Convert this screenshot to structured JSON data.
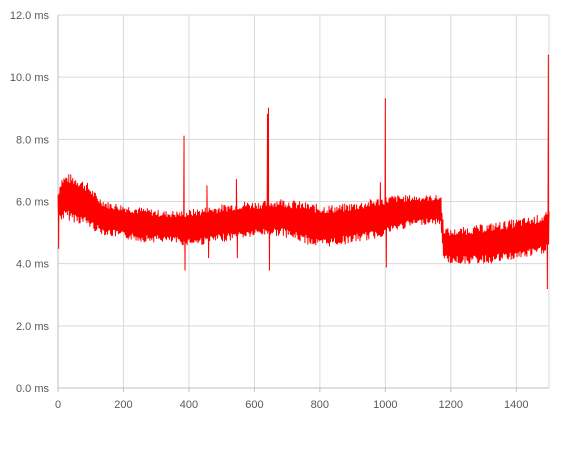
{
  "chart_data": {
    "type": "line",
    "title": "",
    "xlabel": "",
    "ylabel": "",
    "xlim": [
      0,
      1500
    ],
    "ylim": [
      0,
      12
    ],
    "x_ticks": [
      0,
      200,
      400,
      600,
      800,
      1000,
      1200,
      1400
    ],
    "x_tick_labels": [
      "0",
      "200",
      "400",
      "600",
      "800",
      "1000",
      "1200",
      "1400"
    ],
    "y_ticks": [
      0,
      2,
      4,
      6,
      8,
      10,
      12
    ],
    "y_tick_labels": [
      "0.0 ms",
      "2.0 ms",
      "4.0 ms",
      "6.0 ms",
      "8.0 ms",
      "10.0 ms",
      "12.0 ms"
    ],
    "grid": "vertical and horizontal",
    "legend": "none",
    "series": [
      {
        "color": "#ff0000",
        "envelope_upper": [
          [
            0,
            6.3
          ],
          [
            10,
            6.8
          ],
          [
            30,
            6.9
          ],
          [
            60,
            6.8
          ],
          [
            90,
            6.6
          ],
          [
            120,
            6.2
          ],
          [
            150,
            6.0
          ],
          [
            200,
            5.9
          ],
          [
            260,
            5.8
          ],
          [
            320,
            5.7
          ],
          [
            380,
            5.7
          ],
          [
            440,
            5.8
          ],
          [
            500,
            5.9
          ],
          [
            560,
            6.0
          ],
          [
            620,
            6.0
          ],
          [
            680,
            6.1
          ],
          [
            740,
            6.0
          ],
          [
            800,
            5.9
          ],
          [
            860,
            5.9
          ],
          [
            920,
            6.0
          ],
          [
            970,
            6.1
          ],
          [
            1020,
            6.2
          ],
          [
            1080,
            6.2
          ],
          [
            1140,
            6.2
          ],
          [
            1170,
            6.2
          ],
          [
            1178,
            5.2
          ],
          [
            1200,
            5.1
          ],
          [
            1260,
            5.2
          ],
          [
            1320,
            5.3
          ],
          [
            1380,
            5.4
          ],
          [
            1440,
            5.5
          ],
          [
            1480,
            5.6
          ],
          [
            1500,
            5.7
          ]
        ],
        "envelope_lower": [
          [
            0,
            5.4
          ],
          [
            30,
            5.4
          ],
          [
            60,
            5.3
          ],
          [
            90,
            5.2
          ],
          [
            120,
            5.0
          ],
          [
            150,
            4.9
          ],
          [
            200,
            4.8
          ],
          [
            260,
            4.7
          ],
          [
            320,
            4.7
          ],
          [
            380,
            4.6
          ],
          [
            440,
            4.6
          ],
          [
            500,
            4.7
          ],
          [
            560,
            4.8
          ],
          [
            620,
            4.9
          ],
          [
            680,
            4.9
          ],
          [
            740,
            4.7
          ],
          [
            800,
            4.5
          ],
          [
            860,
            4.6
          ],
          [
            920,
            4.7
          ],
          [
            970,
            4.8
          ],
          [
            1020,
            5.0
          ],
          [
            1080,
            5.2
          ],
          [
            1140,
            5.3
          ],
          [
            1170,
            5.2
          ],
          [
            1178,
            4.1
          ],
          [
            1200,
            4.0
          ],
          [
            1260,
            4.0
          ],
          [
            1320,
            4.0
          ],
          [
            1380,
            4.1
          ],
          [
            1440,
            4.2
          ],
          [
            1480,
            4.3
          ],
          [
            1500,
            4.5
          ]
        ],
        "spikes": [
          {
            "x": 2,
            "y": 4.5
          },
          {
            "x": 385,
            "y": 8.1
          },
          {
            "x": 388,
            "y": 3.8
          },
          {
            "x": 455,
            "y": 6.5
          },
          {
            "x": 460,
            "y": 4.2
          },
          {
            "x": 545,
            "y": 6.7
          },
          {
            "x": 548,
            "y": 4.2
          },
          {
            "x": 640,
            "y": 8.8
          },
          {
            "x": 643,
            "y": 9.0
          },
          {
            "x": 646,
            "y": 3.8
          },
          {
            "x": 985,
            "y": 6.6
          },
          {
            "x": 1000,
            "y": 9.3
          },
          {
            "x": 1003,
            "y": 3.9
          },
          {
            "x": 1495,
            "y": 3.2
          },
          {
            "x": 1498,
            "y": 10.7
          }
        ]
      }
    ]
  }
}
